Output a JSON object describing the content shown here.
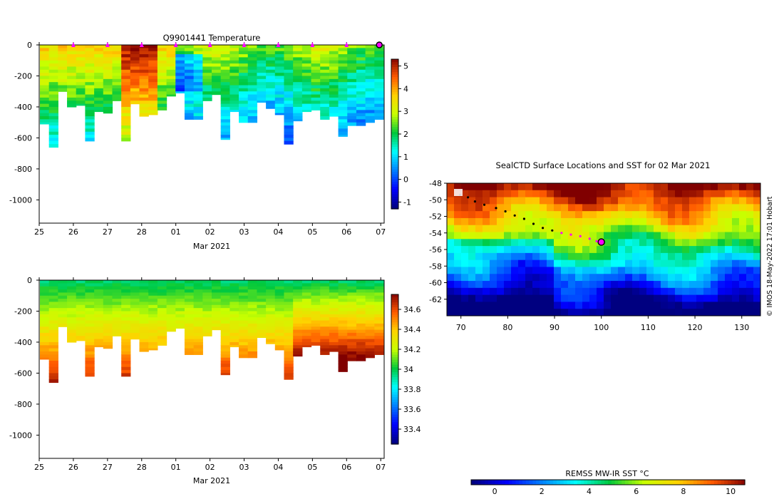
{
  "chart_data": [
    {
      "id": "temperature-section",
      "type": "heatmap",
      "title": "Q9901441  Temperature",
      "xlabel": "Mar 2021",
      "x_tick_labels": [
        "25",
        "26",
        "27",
        "28",
        "01",
        "02",
        "03",
        "04",
        "05",
        "06",
        "07"
      ],
      "y_tick_values": [
        0,
        -200,
        -400,
        -600,
        -800,
        -1000
      ],
      "y_tick_labels": [
        "0",
        "-200",
        "-400",
        "-600",
        "-800",
        "-1000"
      ],
      "ylim": [
        -1150,
        0
      ],
      "xlim_days": [
        0,
        10.1
      ],
      "colorbar": {
        "min": -1.3,
        "max": 5.3,
        "tick_values": [
          -1,
          0,
          1,
          2,
          3,
          4,
          5
        ],
        "tick_labels": [
          "-1",
          "0",
          "1",
          "2",
          "3",
          "4",
          "5"
        ]
      },
      "profile_markers_days": [
        1,
        2,
        3,
        4,
        5,
        6,
        7,
        8,
        9
      ],
      "last_position_marker_day": 10.02,
      "marker_color": "#ff00ff"
    },
    {
      "id": "salinity-section",
      "type": "heatmap",
      "title": "",
      "xlabel": "Mar 2021",
      "x_tick_labels": [
        "25",
        "26",
        "27",
        "28",
        "01",
        "02",
        "03",
        "04",
        "05",
        "06",
        "07"
      ],
      "y_tick_values": [
        0,
        -200,
        -400,
        -600,
        -800,
        -1000
      ],
      "y_tick_labels": [
        "0",
        "-200",
        "-400",
        "-600",
        "-800",
        "-1000"
      ],
      "ylim": [
        -1150,
        0
      ],
      "xlim_days": [
        0,
        10.1
      ],
      "colorbar": {
        "min": 33.25,
        "max": 34.75,
        "tick_values": [
          33.4,
          33.6,
          33.8,
          34,
          34.2,
          34.4,
          34.6
        ],
        "tick_labels": [
          "33.4",
          "33.6",
          "33.8",
          "34",
          "34.2",
          "34.4",
          "34.6"
        ]
      }
    },
    {
      "id": "sst-map",
      "type": "heatmap",
      "title": "SealCTD Surface Locations and SST for 02 Mar 2021",
      "xlabel": "",
      "ylabel": "",
      "xlim": [
        67,
        134
      ],
      "ylim": [
        -64,
        -48
      ],
      "x_tick_values": [
        70,
        80,
        90,
        100,
        110,
        120,
        130
      ],
      "x_tick_labels": [
        "70",
        "80",
        "90",
        "100",
        "110",
        "120",
        "130"
      ],
      "y_tick_values": [
        -48,
        -50,
        -52,
        -54,
        -56,
        -58,
        -60,
        -62
      ],
      "y_tick_labels": [
        "-48",
        "-50",
        "-52",
        "-54",
        "-56",
        "-58",
        "-60",
        "-62"
      ],
      "track": {
        "lon": [
          69.8,
          71.5,
          73,
          75,
          77.5,
          79.5,
          81.5,
          83.5,
          85.5,
          87.5,
          89.5,
          91.5,
          93.5,
          95.5,
          97.5,
          99,
          100
        ],
        "lat": [
          -49.4,
          -49.7,
          -50.2,
          -50.6,
          -51.0,
          -51.4,
          -51.9,
          -52.3,
          -52.9,
          -53.4,
          -53.7,
          -54.0,
          -54.2,
          -54.4,
          -54.7,
          -55.0,
          -55.1
        ],
        "recent_start_index": 11,
        "end_lon": 100,
        "end_lat": -55.1
      },
      "colorbar": {
        "label": "REMSS MW-IR SST °C",
        "min": -1,
        "max": 10.6,
        "tick_values": [
          0,
          2,
          4,
          6,
          8,
          10
        ],
        "tick_labels": [
          "0",
          "2",
          "4",
          "6",
          "8",
          "10"
        ]
      },
      "credit": "© IMOS 18-May-2022 17:01 Hobart"
    }
  ]
}
